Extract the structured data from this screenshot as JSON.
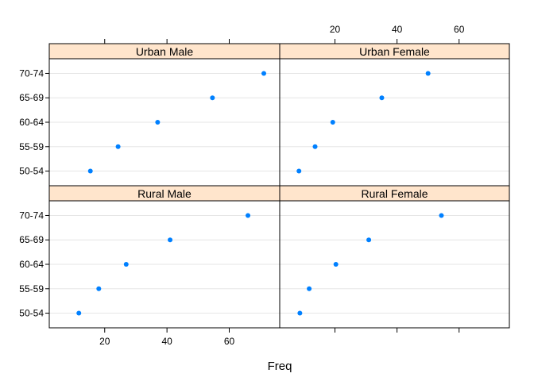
{
  "chart_data": {
    "type": "dotplot",
    "xlabel": "Freq",
    "xlim": [
      2.2,
      76.2
    ],
    "xticks": [
      20,
      40,
      60
    ],
    "categories": [
      "50-54",
      "55-59",
      "60-64",
      "65-69",
      "70-74"
    ],
    "panels": [
      {
        "name": "Urban Male",
        "values": [
          15.4,
          24.3,
          37.0,
          54.6,
          71.1
        ]
      },
      {
        "name": "Urban Female",
        "values": [
          8.4,
          13.6,
          19.3,
          35.1,
          50.0
        ]
      },
      {
        "name": "Rural Male",
        "values": [
          11.7,
          18.1,
          26.9,
          41.0,
          66.0
        ]
      },
      {
        "name": "Rural Female",
        "values": [
          8.7,
          11.7,
          20.3,
          30.9,
          54.3
        ]
      }
    ],
    "grid": true,
    "colors": {
      "point": "#0080ff",
      "strip": "#ffe5cc",
      "grid": "#e6e6e6",
      "frame": "#000000"
    }
  }
}
